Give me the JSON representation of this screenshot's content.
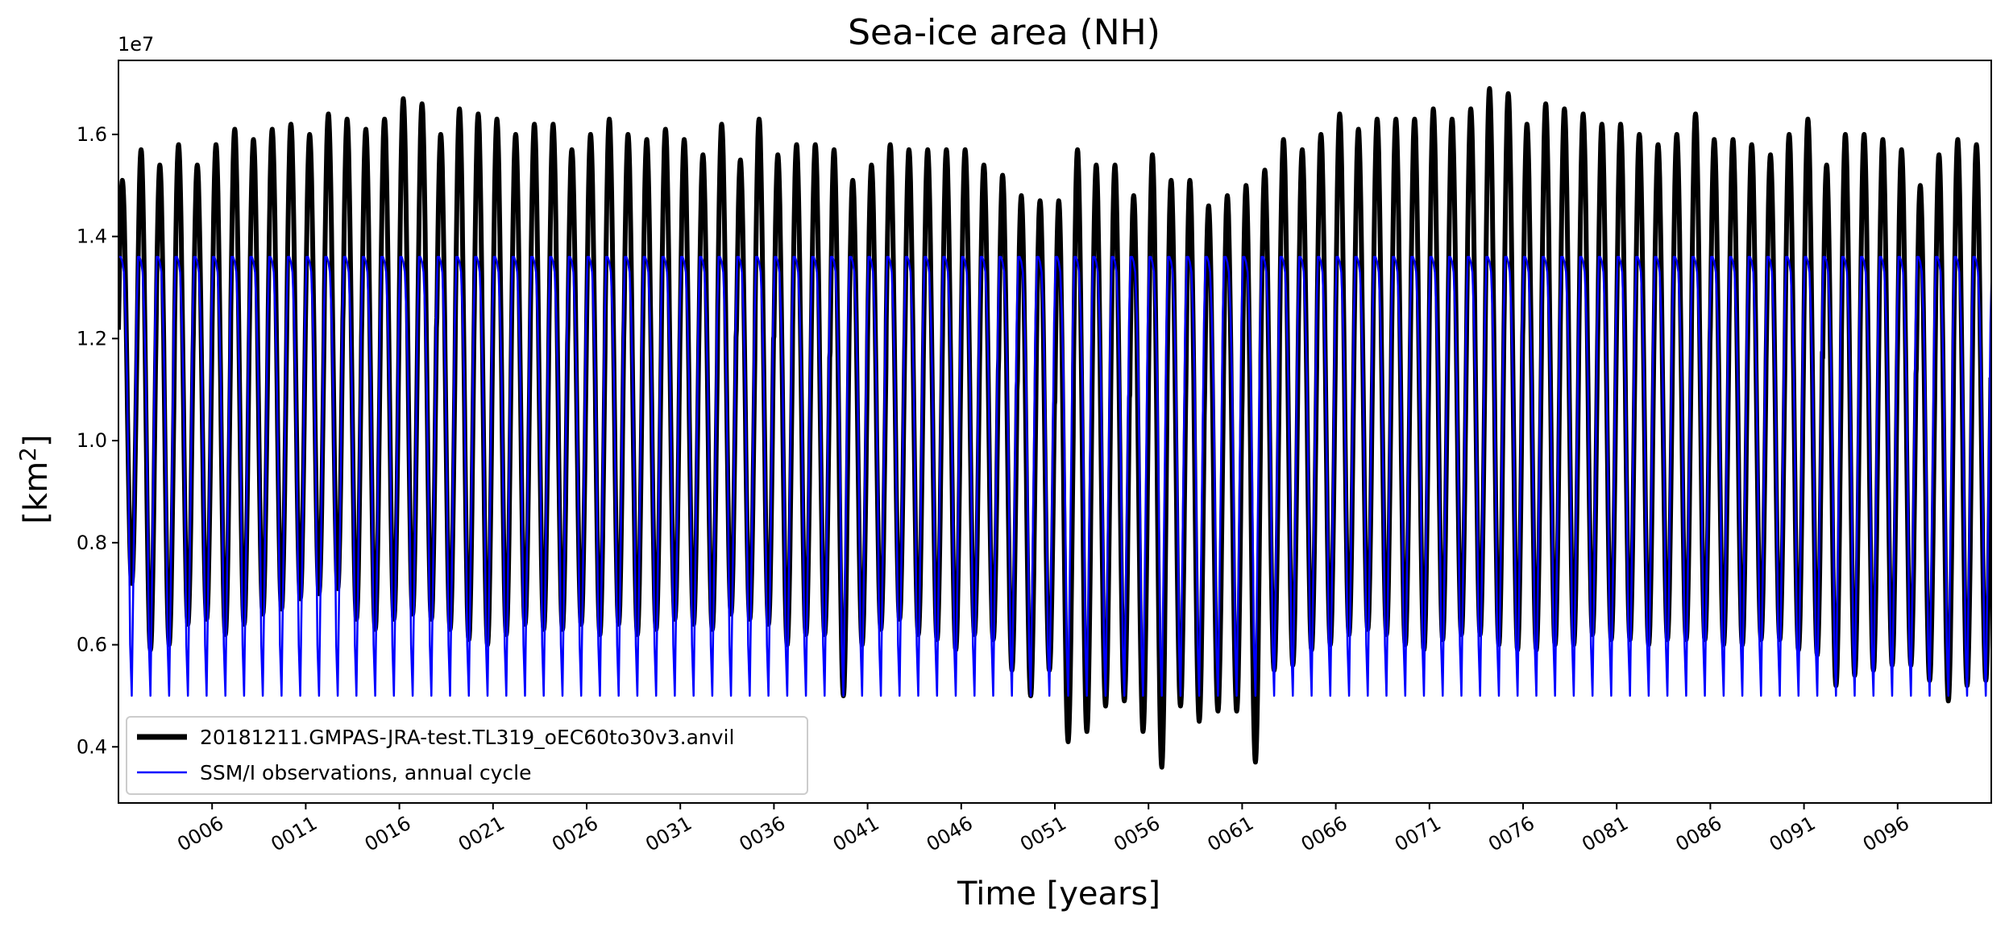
{
  "chart_data": {
    "type": "line",
    "title": "Sea-ice area (NH)",
    "xlabel": "Time [years]",
    "ylabel_base": "[km",
    "ylabel_exponent": "2",
    "ylabel_close": "]",
    "y_offset_label": "1e7",
    "y_scale": 10000000,
    "xlim": [
      1,
      101
    ],
    "ylim": [
      0.29,
      1.745
    ],
    "x_ticks": [
      6,
      11,
      16,
      21,
      26,
      31,
      36,
      41,
      46,
      51,
      56,
      61,
      66,
      71,
      76,
      81,
      86,
      91,
      96
    ],
    "x_tick_labels": [
      "0006",
      "0011",
      "0016",
      "0021",
      "0026",
      "0031",
      "0036",
      "0041",
      "0046",
      "0051",
      "0056",
      "0061",
      "0066",
      "0071",
      "0076",
      "0081",
      "0086",
      "0091",
      "0096"
    ],
    "y_ticks": [
      0.4,
      0.6,
      0.8,
      1.0,
      1.2,
      1.4,
      1.6
    ],
    "y_tick_labels": [
      "0.4",
      "0.6",
      "0.8",
      "1.0",
      "1.2",
      "1.4",
      "1.6"
    ],
    "grid": false,
    "legend_position": "lower-left",
    "series": [
      {
        "name": "20181211.GMPAS-JRA-test.TL319_oEC60to30v3.anvil",
        "color": "#000000",
        "line_width": "thick",
        "start_year": 1,
        "annual_max_1e7": [
          1.51,
          1.57,
          1.54,
          1.58,
          1.54,
          1.58,
          1.61,
          1.59,
          1.61,
          1.62,
          1.6,
          1.64,
          1.63,
          1.61,
          1.63,
          1.67,
          1.66,
          1.6,
          1.65,
          1.64,
          1.63,
          1.6,
          1.62,
          1.62,
          1.57,
          1.6,
          1.63,
          1.6,
          1.59,
          1.61,
          1.59,
          1.56,
          1.62,
          1.55,
          1.63,
          1.56,
          1.58,
          1.58,
          1.57,
          1.51,
          1.54,
          1.58,
          1.57,
          1.57,
          1.57,
          1.57,
          1.54,
          1.52,
          1.48,
          1.47,
          1.47,
          1.57,
          1.54,
          1.54,
          1.48,
          1.56,
          1.51,
          1.51,
          1.46,
          1.48,
          1.5,
          1.53,
          1.59,
          1.57,
          1.6,
          1.64,
          1.61,
          1.63,
          1.63,
          1.63,
          1.65,
          1.63,
          1.65,
          1.69,
          1.68,
          1.62,
          1.66,
          1.65,
          1.64,
          1.62,
          1.62,
          1.6,
          1.58,
          1.6,
          1.64,
          1.59,
          1.59,
          1.58,
          1.56,
          1.6,
          1.63,
          1.54,
          1.6,
          1.6,
          1.59,
          1.57,
          1.5,
          1.56,
          1.59,
          1.58
        ],
        "annual_min_1e7": [
          0.72,
          0.59,
          0.6,
          0.64,
          0.65,
          0.62,
          0.64,
          0.66,
          0.67,
          0.69,
          0.7,
          0.71,
          0.65,
          0.63,
          0.65,
          0.66,
          0.65,
          0.63,
          0.61,
          0.6,
          0.62,
          0.64,
          0.63,
          0.63,
          0.64,
          0.62,
          0.64,
          0.62,
          0.63,
          0.65,
          0.64,
          0.63,
          0.66,
          0.65,
          0.64,
          0.6,
          0.62,
          0.62,
          0.5,
          0.6,
          0.63,
          0.65,
          0.62,
          0.61,
          0.59,
          0.62,
          0.61,
          0.55,
          0.5,
          0.55,
          0.41,
          0.43,
          0.48,
          0.49,
          0.43,
          0.36,
          0.48,
          0.45,
          0.47,
          0.47,
          0.37,
          0.55,
          0.56,
          0.59,
          0.6,
          0.62,
          0.63,
          0.62,
          0.6,
          0.59,
          0.61,
          0.62,
          0.62,
          0.6,
          0.59,
          0.59,
          0.6,
          0.6,
          0.62,
          0.61,
          0.61,
          0.6,
          0.61,
          0.61,
          0.61,
          0.6,
          0.6,
          0.61,
          0.61,
          0.59,
          0.58,
          0.52,
          0.54,
          0.55,
          0.56,
          0.56,
          0.53,
          0.49,
          0.52,
          0.53
        ]
      },
      {
        "name": "SSM/I observations, annual cycle",
        "color": "#0000ff",
        "line_width": "thin",
        "monthly_climatology_1e7": [
          1.36,
          1.36,
          1.35,
          1.33,
          1.25,
          1.12,
          0.9,
          0.6,
          0.5,
          0.72,
          0.96,
          1.23
        ]
      }
    ]
  }
}
